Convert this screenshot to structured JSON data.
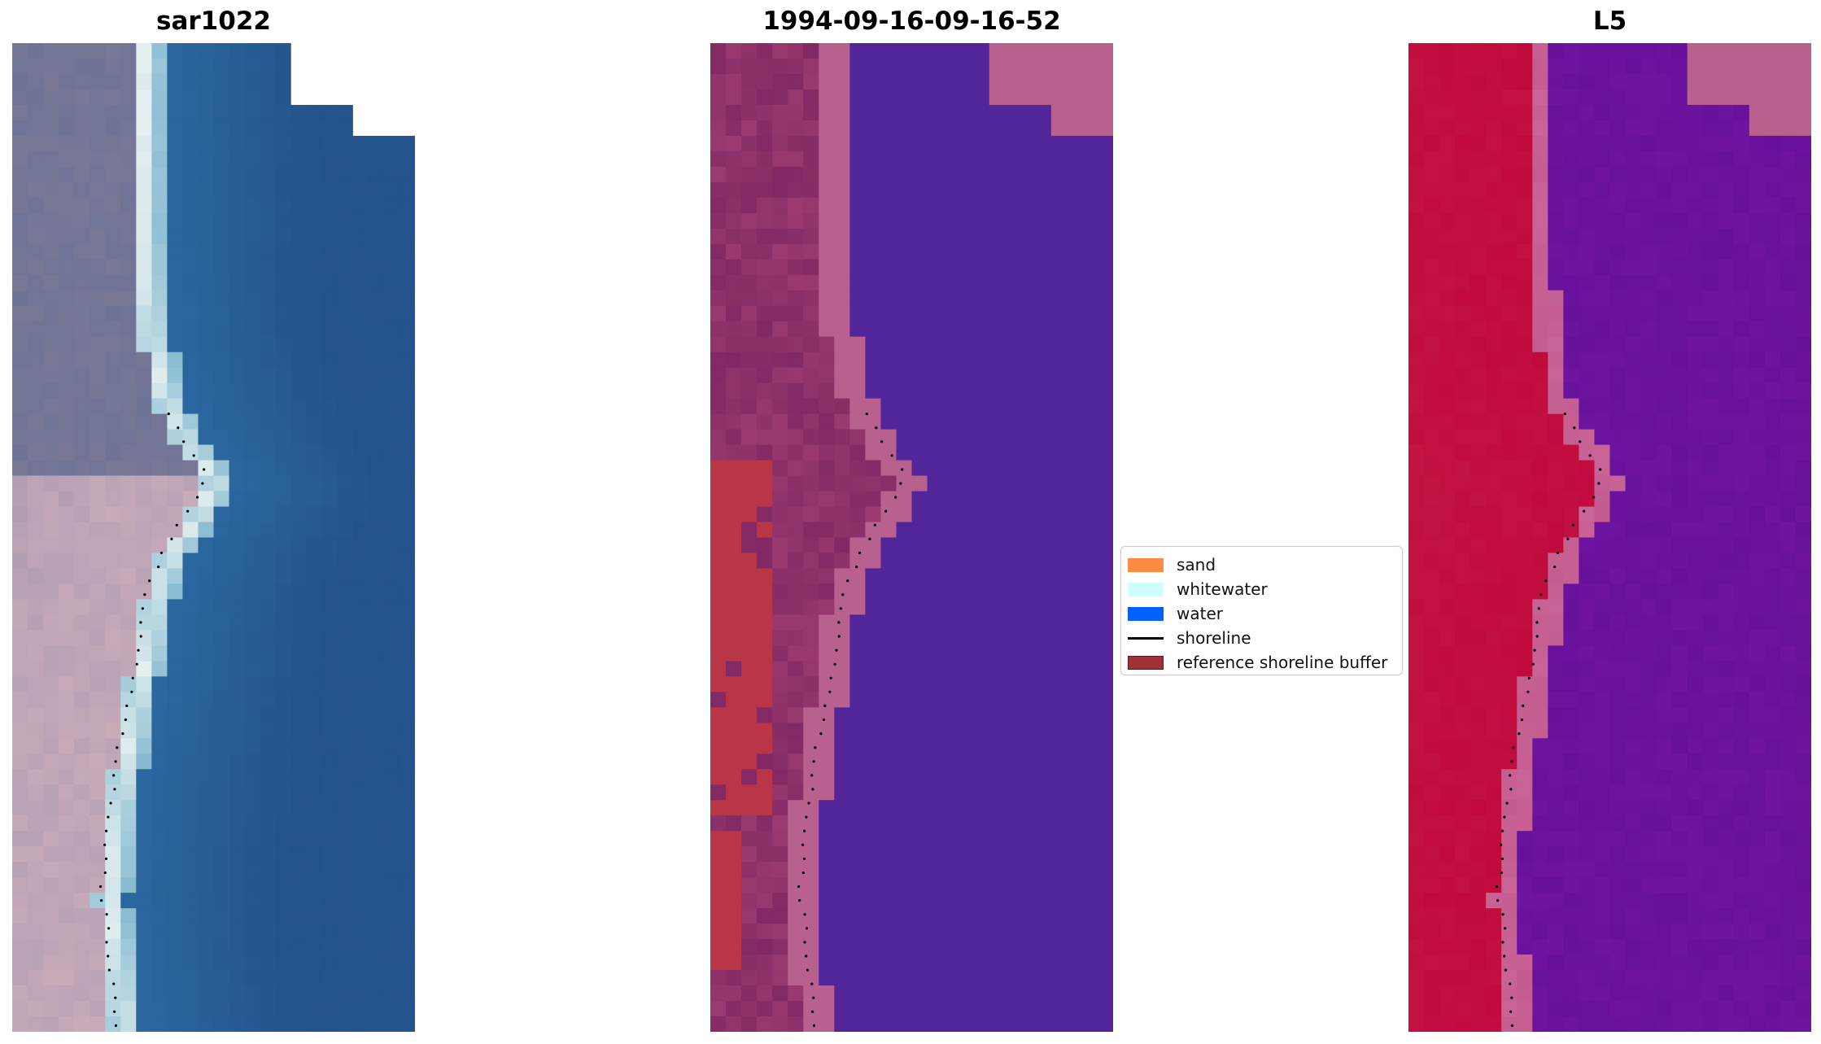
{
  "panels": [
    {
      "title": "sar1022",
      "style": "rgb"
    },
    {
      "title": "1994-09-16-09-16-52",
      "style": "classified"
    },
    {
      "title": "L5",
      "style": "index"
    }
  ],
  "legend": {
    "items": [
      {
        "label": "sand",
        "kind": "patch",
        "color": "#ff8c42"
      },
      {
        "label": "whitewater",
        "kind": "patch",
        "color": "#ccfffc"
      },
      {
        "label": "water",
        "kind": "patch",
        "color": "#0060ff"
      },
      {
        "label": "shoreline",
        "kind": "line",
        "color": "#000000"
      },
      {
        "label": "reference shoreline buffer",
        "kind": "patch",
        "color": "#a0303a"
      }
    ]
  },
  "colors": {
    "water_class": "#52269a",
    "land_pink": "#b8608e",
    "buffer_red": "#b93646",
    "index_red": "#c0083a",
    "index_purple": "#6a12a0"
  }
}
